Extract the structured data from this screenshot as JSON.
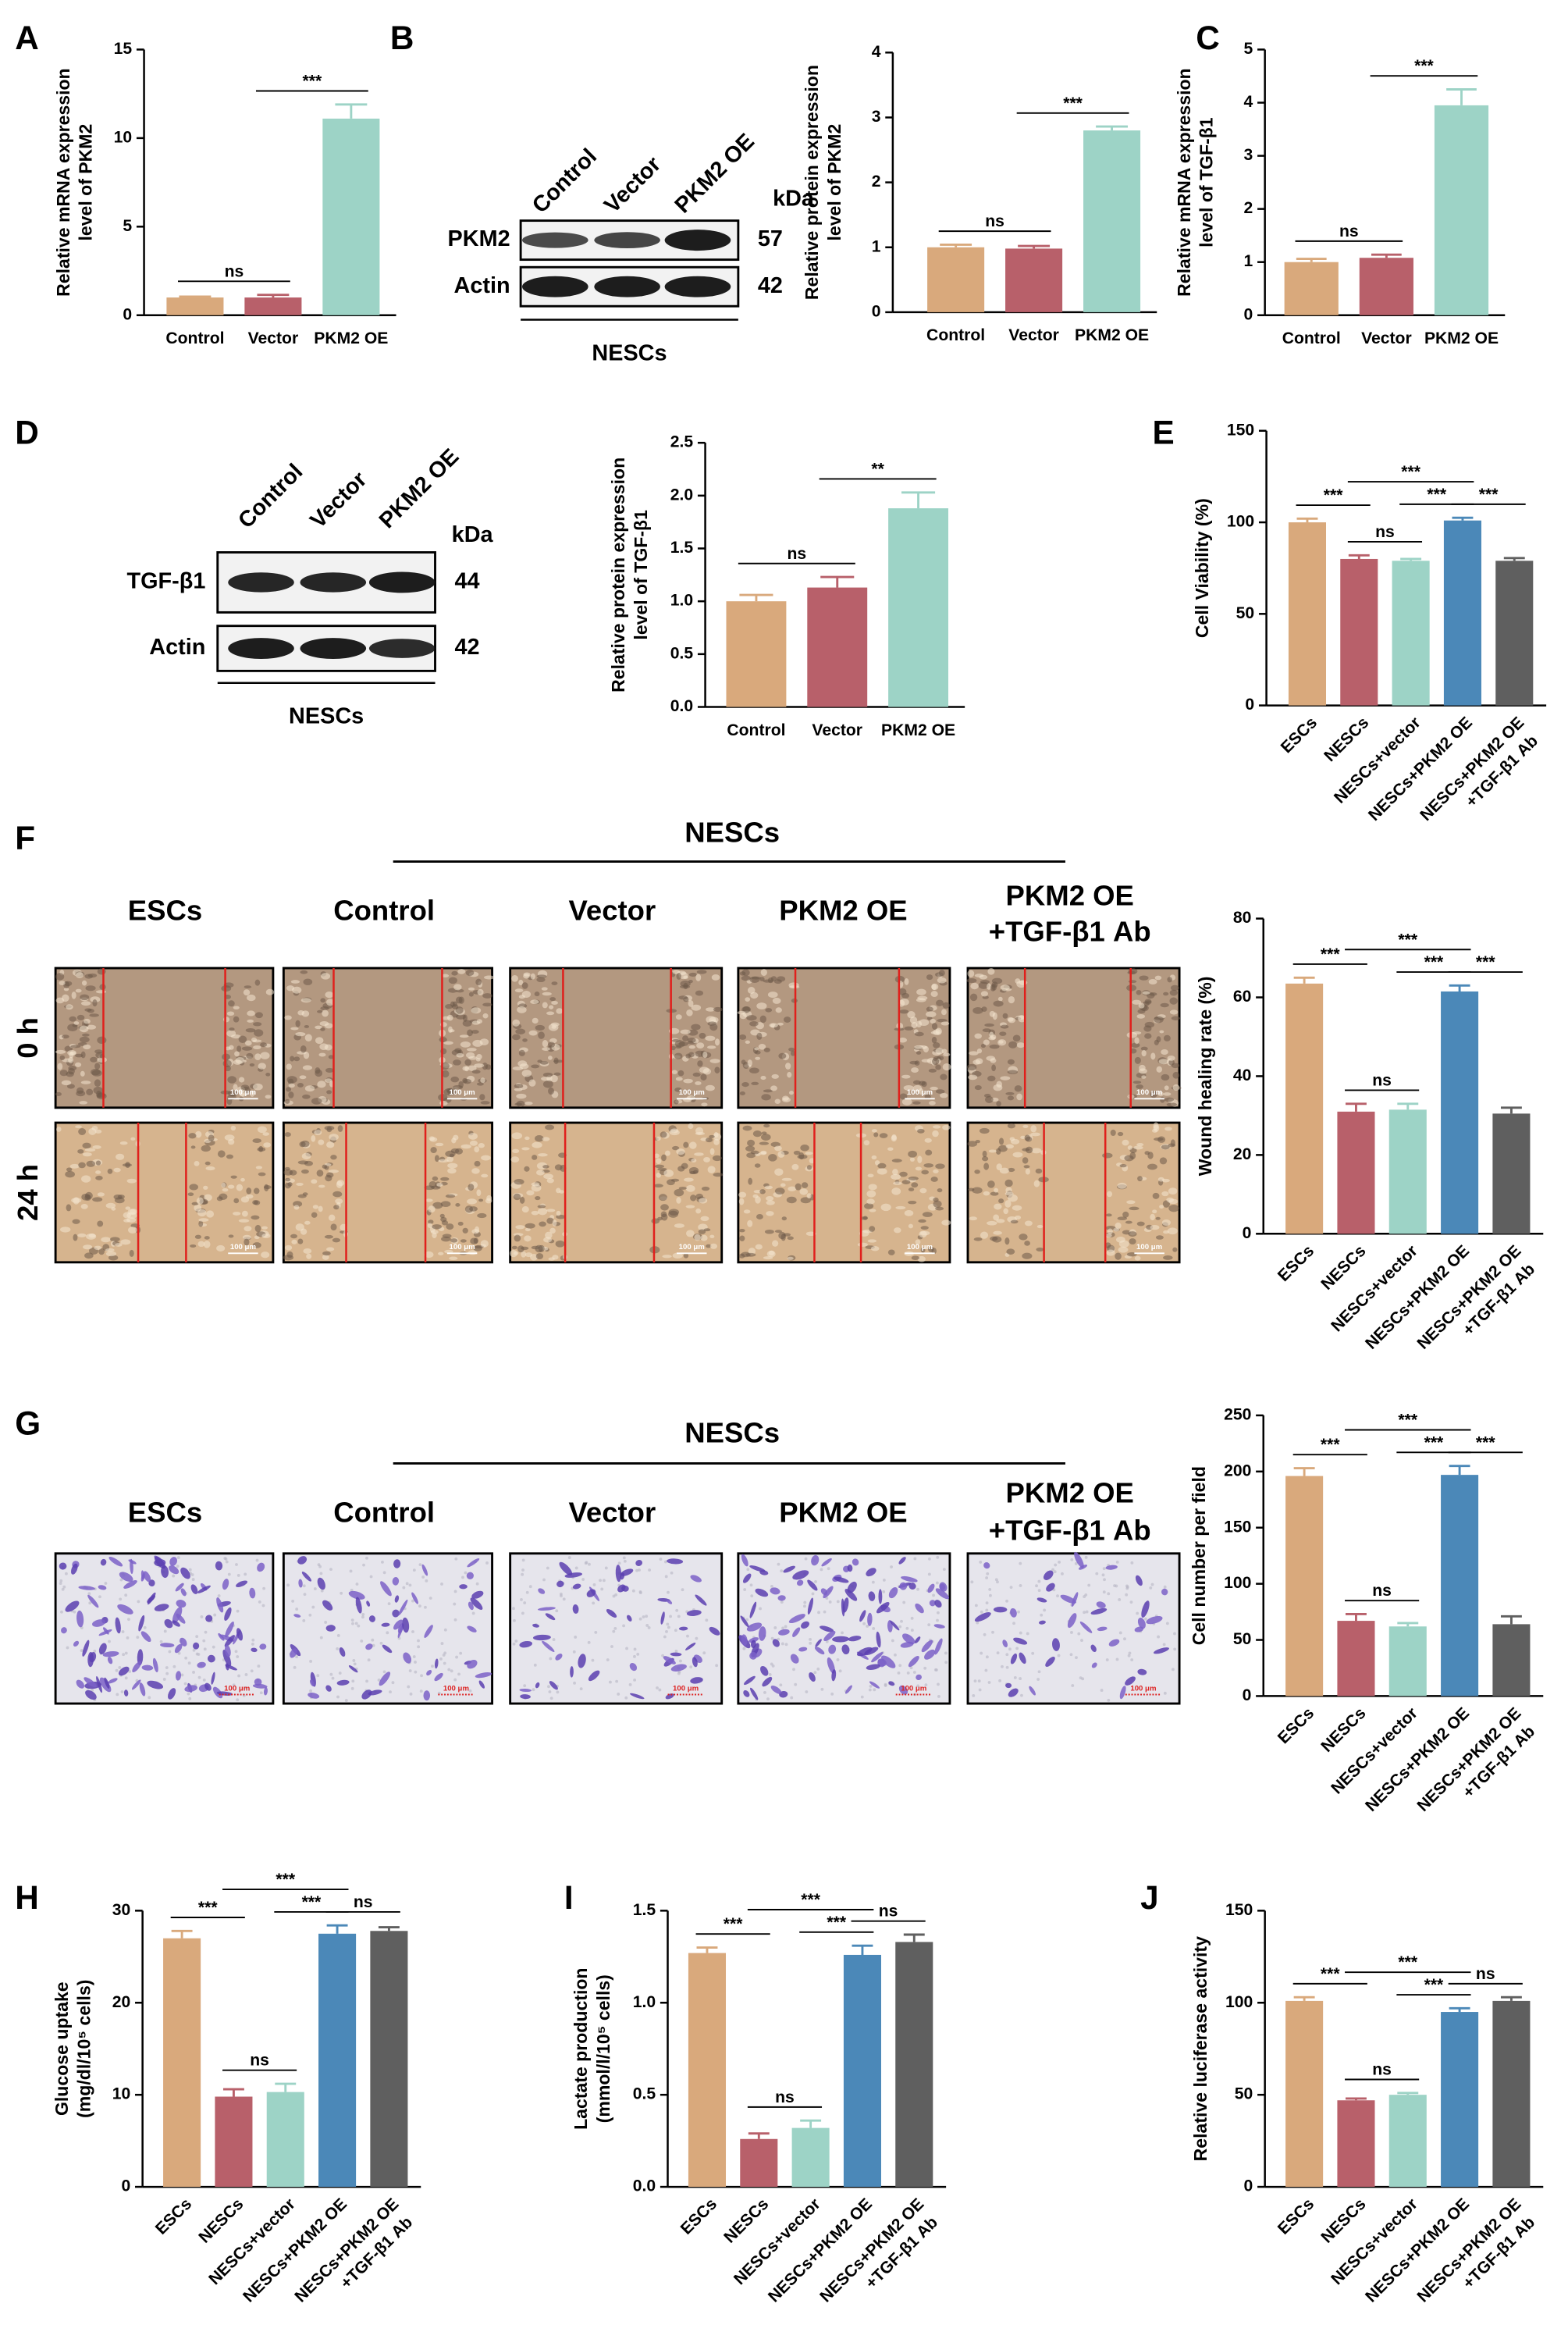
{
  "chart_data": [
    {
      "type": "bar",
      "panel": "A",
      "ylabel": [
        "Relative mRNA expression",
        "level of PKM2"
      ],
      "categories": [
        [
          "Control"
        ],
        [
          "Vector"
        ],
        [
          "PKM2 OE"
        ]
      ],
      "values": [
        1.0,
        1.0,
        11.1
      ],
      "errors": [
        0.05,
        0.15,
        0.8
      ],
      "colors": [
        "#d9a97c",
        "#b8606a",
        "#9dd3c6"
      ],
      "ylim": [
        0,
        15
      ],
      "yticks": [
        0,
        5,
        10,
        15
      ],
      "annotations": [
        {
          "text": "ns",
          "bars": [
            0,
            1
          ]
        },
        {
          "text": "***",
          "bars": [
            1,
            2
          ]
        }
      ]
    },
    {
      "type": "bar",
      "panel": "B",
      "ylabel": [
        "Relative protein expression",
        "level of PKM2"
      ],
      "categories": [
        [
          "Control"
        ],
        [
          "Vector"
        ],
        [
          "PKM2 OE"
        ]
      ],
      "values": [
        1.0,
        0.98,
        2.8
      ],
      "errors": [
        0.04,
        0.04,
        0.06
      ],
      "colors": [
        "#d9a97c",
        "#b8606a",
        "#9dd3c6"
      ],
      "ylim": [
        0,
        4
      ],
      "yticks": [
        0,
        1,
        2,
        3,
        4
      ],
      "annotations": [
        {
          "text": "ns",
          "bars": [
            0,
            1
          ]
        },
        {
          "text": "***",
          "bars": [
            1,
            2
          ]
        }
      ]
    },
    {
      "type": "bar",
      "panel": "C",
      "ylabel": [
        "Relative mRNA expression",
        "level of TGF-β1"
      ],
      "categories": [
        [
          "Control"
        ],
        [
          "Vector"
        ],
        [
          "PKM2 OE"
        ]
      ],
      "values": [
        1.0,
        1.08,
        3.95
      ],
      "errors": [
        0.06,
        0.06,
        0.3
      ],
      "colors": [
        "#d9a97c",
        "#b8606a",
        "#9dd3c6"
      ],
      "ylim": [
        0,
        5
      ],
      "yticks": [
        0,
        1,
        2,
        3,
        4,
        5
      ],
      "annotations": [
        {
          "text": "ns",
          "bars": [
            0,
            1
          ]
        },
        {
          "text": "***",
          "bars": [
            1,
            2
          ]
        }
      ]
    },
    {
      "type": "bar",
      "panel": "D",
      "ylabel": [
        "Relative protein expression",
        "level of TGF-β1"
      ],
      "categories": [
        [
          "Control"
        ],
        [
          "Vector"
        ],
        [
          "PKM2 OE"
        ]
      ],
      "values": [
        1.0,
        1.13,
        1.88
      ],
      "errors": [
        0.06,
        0.1,
        0.15
      ],
      "colors": [
        "#d9a97c",
        "#b8606a",
        "#9dd3c6"
      ],
      "ylim": [
        0,
        2.5
      ],
      "yticks": [
        {
          "value": 0,
          "label": "0.0"
        },
        {
          "value": 0.5,
          "label": "0.5"
        },
        {
          "value": 1,
          "label": "1.0"
        },
        {
          "value": 1.5,
          "label": "1.5"
        },
        {
          "value": 2,
          "label": "2.0"
        },
        {
          "value": 2.5,
          "label": "2.5"
        }
      ],
      "annotations": [
        {
          "text": "ns",
          "bars": [
            0,
            1
          ]
        },
        {
          "text": "**",
          "bars": [
            1,
            2
          ]
        }
      ]
    },
    {
      "type": "bar",
      "panel": "E",
      "ylabel": [
        "Cell Viability (%)"
      ],
      "categories": [
        [
          "ESCs"
        ],
        [
          "NESCs"
        ],
        [
          "NESCs+vector"
        ],
        [
          "NESCs+PKM2 OE"
        ],
        [
          "NESCs+PKM2 OE",
          "+TGF-β1 Ab"
        ]
      ],
      "values": [
        100,
        80,
        79,
        101,
        79
      ],
      "errors": [
        2,
        2,
        1,
        1.5,
        1.5
      ],
      "colors": [
        "#d9a97c",
        "#b8606a",
        "#9dd3c6",
        "#4b88b8",
        "#5f5f5f"
      ],
      "ylim": [
        0,
        150
      ],
      "yticks": [
        0,
        50,
        100,
        150
      ],
      "annotations": [
        {
          "text": "***",
          "bars": [
            0,
            1
          ]
        },
        {
          "text": "ns",
          "bars": [
            1,
            2
          ]
        },
        {
          "text": "***",
          "bars": [
            1,
            3
          ]
        },
        {
          "text": "***",
          "bars": [
            2,
            3
          ]
        },
        {
          "text": "***",
          "bars": [
            3,
            4
          ]
        }
      ]
    },
    {
      "type": "bar",
      "panel": "F",
      "ylabel": [
        "Wound healing rate (%)"
      ],
      "categories": [
        [
          "ESCs"
        ],
        [
          "NESCs"
        ],
        [
          "NESCs+vector"
        ],
        [
          "NESCs+PKM2 OE"
        ],
        [
          "NESCs+PKM2 OE",
          "+TGF-β1 Ab"
        ]
      ],
      "values": [
        63.5,
        31,
        31.5,
        61.5,
        30.5
      ],
      "errors": [
        1.5,
        2,
        1.5,
        1.5,
        1.5
      ],
      "colors": [
        "#d9a97c",
        "#b8606a",
        "#9dd3c6",
        "#4b88b8",
        "#5f5f5f"
      ],
      "ylim": [
        0,
        80
      ],
      "yticks": [
        0,
        20,
        40,
        60,
        80
      ],
      "annotations": [
        {
          "text": "***",
          "bars": [
            0,
            1
          ]
        },
        {
          "text": "ns",
          "bars": [
            1,
            2
          ]
        },
        {
          "text": "***",
          "bars": [
            1,
            3
          ]
        },
        {
          "text": "***",
          "bars": [
            2,
            3
          ]
        },
        {
          "text": "***",
          "bars": [
            3,
            4
          ]
        }
      ]
    },
    {
      "type": "bar",
      "panel": "G",
      "ylabel": [
        "Cell number per field"
      ],
      "categories": [
        [
          "ESCs"
        ],
        [
          "NESCs"
        ],
        [
          "NESCs+vector"
        ],
        [
          "NESCs+PKM2 OE"
        ],
        [
          "NESCs+PKM2 OE",
          "+TGF-β1 Ab"
        ]
      ],
      "values": [
        196,
        67,
        62,
        197,
        64
      ],
      "errors": [
        7,
        6,
        3,
        8,
        7
      ],
      "colors": [
        "#d9a97c",
        "#b8606a",
        "#9dd3c6",
        "#4b88b8",
        "#5f5f5f"
      ],
      "ylim": [
        0,
        250
      ],
      "yticks": [
        0,
        50,
        100,
        150,
        200,
        250
      ],
      "annotations": [
        {
          "text": "***",
          "bars": [
            0,
            1
          ]
        },
        {
          "text": "ns",
          "bars": [
            1,
            2
          ]
        },
        {
          "text": "***",
          "bars": [
            1,
            3
          ]
        },
        {
          "text": "***",
          "bars": [
            2,
            3
          ]
        },
        {
          "text": "***",
          "bars": [
            3,
            4
          ]
        }
      ]
    },
    {
      "type": "bar",
      "panel": "H",
      "ylabel": [
        "Glucose uptake",
        "(mg/dl/10⁵ cells)"
      ],
      "categories": [
        [
          "ESCs"
        ],
        [
          "NESCs"
        ],
        [
          "NESCs+vector"
        ],
        [
          "NESCs+PKM2 OE"
        ],
        [
          "NESCs+PKM2 OE",
          "+TGF-β1 Ab"
        ]
      ],
      "values": [
        27,
        9.8,
        10.3,
        27.5,
        27.8
      ],
      "errors": [
        0.8,
        0.8,
        0.9,
        0.9,
        0.4
      ],
      "colors": [
        "#d9a97c",
        "#b8606a",
        "#9dd3c6",
        "#4b88b8",
        "#5f5f5f"
      ],
      "ylim": [
        0,
        30
      ],
      "yticks": [
        0,
        10,
        20,
        30
      ],
      "annotations": [
        {
          "text": "***",
          "bars": [
            0,
            1
          ]
        },
        {
          "text": "ns",
          "bars": [
            1,
            2
          ]
        },
        {
          "text": "***",
          "bars": [
            1,
            3
          ]
        },
        {
          "text": "***",
          "bars": [
            2,
            3
          ]
        },
        {
          "text": "ns",
          "bars": [
            3,
            4
          ]
        }
      ]
    },
    {
      "type": "bar",
      "panel": "I",
      "ylabel": [
        "Lactate production",
        "(mmol/l/10⁵ cells)"
      ],
      "categories": [
        [
          "ESCs"
        ],
        [
          "NESCs"
        ],
        [
          "NESCs+vector"
        ],
        [
          "NESCs+PKM2 OE"
        ],
        [
          "NESCs+PKM2 OE",
          "+TGF-β1 Ab"
        ]
      ],
      "values": [
        1.27,
        0.26,
        0.32,
        1.26,
        1.33
      ],
      "errors": [
        0.03,
        0.03,
        0.04,
        0.05,
        0.04
      ],
      "colors": [
        "#d9a97c",
        "#b8606a",
        "#9dd3c6",
        "#4b88b8",
        "#5f5f5f"
      ],
      "ylim": [
        0,
        1.5
      ],
      "yticks": [
        {
          "value": 0,
          "label": "0.0"
        },
        {
          "value": 0.5,
          "label": "0.5"
        },
        {
          "value": 1,
          "label": "1.0"
        },
        {
          "value": 1.5,
          "label": "1.5"
        }
      ],
      "annotations": [
        {
          "text": "***",
          "bars": [
            0,
            1
          ]
        },
        {
          "text": "ns",
          "bars": [
            1,
            2
          ]
        },
        {
          "text": "***",
          "bars": [
            1,
            3
          ]
        },
        {
          "text": "***",
          "bars": [
            2,
            3
          ]
        },
        {
          "text": "ns",
          "bars": [
            3,
            4
          ]
        }
      ]
    },
    {
      "type": "bar",
      "panel": "J",
      "ylabel": [
        "Relative luciferase activity"
      ],
      "categories": [
        [
          "ESCs"
        ],
        [
          "NESCs"
        ],
        [
          "NESCs+vector"
        ],
        [
          "NESCs+PKM2 OE"
        ],
        [
          "NESCs+PKM2 OE",
          "+TGF-β1 Ab"
        ]
      ],
      "values": [
        101,
        47,
        50,
        95,
        101
      ],
      "errors": [
        2,
        1,
        1,
        2,
        2
      ],
      "colors": [
        "#d9a97c",
        "#b8606a",
        "#9dd3c6",
        "#4b88b8",
        "#5f5f5f"
      ],
      "ylim": [
        0,
        150
      ],
      "yticks": [
        0,
        50,
        100,
        150
      ],
      "annotations": [
        {
          "text": "***",
          "bars": [
            0,
            1
          ]
        },
        {
          "text": "ns",
          "bars": [
            1,
            2
          ]
        },
        {
          "text": "***",
          "bars": [
            1,
            3
          ]
        },
        {
          "text": "***",
          "bars": [
            2,
            3
          ]
        },
        {
          "text": "ns",
          "bars": [
            3,
            4
          ]
        }
      ]
    }
  ],
  "blots": [
    {
      "lanes": [
        "Control",
        "Vector",
        "PKM2 OE"
      ],
      "unit": "kDa",
      "rows": [
        {
          "name": "PKM2",
          "size": "57"
        },
        {
          "name": "Actin",
          "size": "42"
        }
      ],
      "group": "NESCs"
    },
    {
      "lanes": [
        "Control",
        "Vector",
        "PKM2 OE"
      ],
      "unit": "kDa",
      "rows": [
        {
          "name": "TGF-β1",
          "size": "44"
        },
        {
          "name": "Actin",
          "size": "42"
        }
      ],
      "group": "NESCs"
    }
  ],
  "wound": {
    "group": "NESCs",
    "columns": [
      [
        "ESCs"
      ],
      [
        "Control"
      ],
      [
        "Vector"
      ],
      [
        "PKM2 OE"
      ],
      [
        "PKM2 OE",
        "+TGF-β1 Ab"
      ]
    ],
    "rows": [
      "0 h",
      "24 h"
    ],
    "scale": "100 μm"
  },
  "transwell": {
    "group": "NESCs",
    "columns": [
      [
        "ESCs"
      ],
      [
        "Control"
      ],
      [
        "Vector"
      ],
      [
        "PKM2 OE"
      ],
      [
        "PKM2 OE",
        "+TGF-β1 Ab"
      ]
    ],
    "scale": "100 μm"
  }
}
